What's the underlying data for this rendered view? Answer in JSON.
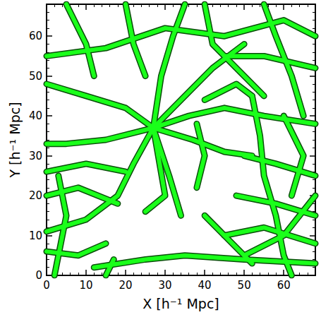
{
  "chart_data": {
    "type": "line",
    "xlabel": "X [h⁻¹ Mpc]",
    "ylabel": "Y [h⁻¹ Mpc]",
    "xlim": [
      0,
      68
    ],
    "ylim": [
      0,
      68
    ],
    "xticks": [
      0,
      10,
      20,
      30,
      40,
      50,
      60
    ],
    "yticks": [
      0,
      10,
      20,
      30,
      40,
      50,
      60
    ],
    "color": "#1aff1a",
    "filaments": [
      [
        [
          27,
          37
        ],
        [
          35,
          45
        ],
        [
          42,
          52
        ],
        [
          50,
          58
        ]
      ],
      [
        [
          27,
          37
        ],
        [
          20,
          42
        ],
        [
          10,
          45
        ],
        [
          0,
          48
        ]
      ],
      [
        [
          27,
          37
        ],
        [
          15,
          34
        ],
        [
          5,
          33
        ],
        [
          0,
          33
        ]
      ],
      [
        [
          27,
          37
        ],
        [
          22,
          28
        ],
        [
          18,
          20
        ],
        [
          10,
          14
        ],
        [
          0,
          11
        ]
      ],
      [
        [
          27,
          37
        ],
        [
          31,
          25
        ],
        [
          34,
          15
        ]
      ],
      [
        [
          27,
          37
        ],
        [
          37,
          34
        ],
        [
          45,
          31
        ],
        [
          52,
          30
        ]
      ],
      [
        [
          27,
          37
        ],
        [
          30,
          20
        ],
        [
          25,
          16
        ]
      ],
      [
        [
          27,
          37
        ],
        [
          36,
          40
        ],
        [
          45,
          42
        ],
        [
          55,
          40
        ],
        [
          68,
          38
        ]
      ],
      [
        [
          27,
          37
        ],
        [
          29,
          50
        ],
        [
          32,
          60
        ],
        [
          35,
          68
        ]
      ],
      [
        [
          0,
          55
        ],
        [
          15,
          57
        ],
        [
          30,
          62
        ],
        [
          45,
          60
        ],
        [
          60,
          64
        ],
        [
          68,
          60
        ]
      ],
      [
        [
          5,
          68
        ],
        [
          10,
          58
        ],
        [
          12,
          50
        ]
      ],
      [
        [
          20,
          68
        ],
        [
          22,
          58
        ],
        [
          25,
          50
        ]
      ],
      [
        [
          40,
          68
        ],
        [
          42,
          58
        ],
        [
          50,
          50
        ],
        [
          55,
          45
        ]
      ],
      [
        [
          55,
          68
        ],
        [
          58,
          60
        ],
        [
          62,
          50
        ],
        [
          65,
          40
        ]
      ],
      [
        [
          45,
          55
        ],
        [
          55,
          55
        ],
        [
          68,
          52
        ]
      ],
      [
        [
          52,
          45
        ],
        [
          54,
          35
        ],
        [
          55,
          25
        ],
        [
          58,
          15
        ],
        [
          60,
          5
        ],
        [
          62,
          0
        ]
      ],
      [
        [
          50,
          30
        ],
        [
          58,
          28
        ],
        [
          68,
          25
        ]
      ],
      [
        [
          48,
          20
        ],
        [
          58,
          18
        ],
        [
          68,
          15
        ]
      ],
      [
        [
          45,
          10
        ],
        [
          55,
          12
        ],
        [
          68,
          8
        ]
      ],
      [
        [
          50,
          5
        ],
        [
          60,
          10
        ],
        [
          68,
          20
        ]
      ],
      [
        [
          60,
          40
        ],
        [
          65,
          30
        ],
        [
          62,
          20
        ]
      ],
      [
        [
          12,
          2
        ],
        [
          25,
          4
        ],
        [
          35,
          5
        ],
        [
          50,
          4
        ],
        [
          68,
          3
        ]
      ],
      [
        [
          0,
          6
        ],
        [
          8,
          5
        ],
        [
          15,
          8
        ]
      ],
      [
        [
          0,
          20
        ],
        [
          8,
          22
        ],
        [
          18,
          18
        ]
      ],
      [
        [
          0,
          26
        ],
        [
          10,
          28
        ],
        [
          20,
          26
        ]
      ],
      [
        [
          2,
          0
        ],
        [
          5,
          15
        ],
        [
          3,
          25
        ]
      ],
      [
        [
          15,
          0
        ],
        [
          17,
          4
        ]
      ],
      [
        [
          40,
          15
        ],
        [
          47,
          8
        ],
        [
          52,
          3
        ]
      ],
      [
        [
          38,
          38
        ],
        [
          40,
          30
        ],
        [
          38,
          22
        ]
      ],
      [
        [
          40,
          44
        ],
        [
          48,
          48
        ],
        [
          52,
          45
        ]
      ]
    ]
  }
}
